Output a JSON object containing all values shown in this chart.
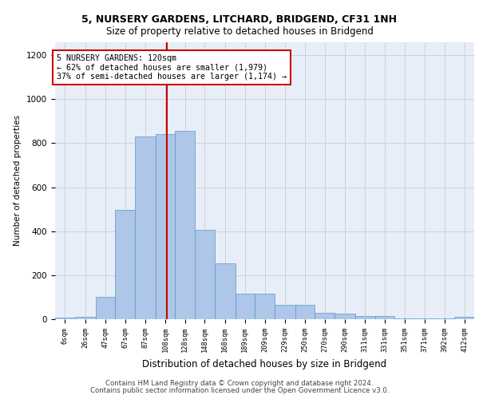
{
  "title1": "5, NURSERY GARDENS, LITCHARD, BRIDGEND, CF31 1NH",
  "title2": "Size of property relative to detached houses in Bridgend",
  "xlabel": "Distribution of detached houses by size in Bridgend",
  "ylabel": "Number of detached properties",
  "footer1": "Contains HM Land Registry data © Crown copyright and database right 2024.",
  "footer2": "Contains public sector information licensed under the Open Government Licence v3.0.",
  "annotation_line1": "5 NURSERY GARDENS: 120sqm",
  "annotation_line2": "← 62% of detached houses are smaller (1,979)",
  "annotation_line3": "37% of semi-detached houses are larger (1,174) →",
  "property_size": 120,
  "bar_color": "#aec6e8",
  "bar_edge_color": "#5599cc",
  "vline_color": "#cc0000",
  "annotation_box_edge": "#cc0000",
  "annotation_box_face": "#ffffff",
  "grid_color": "#cccccc",
  "background_color": "#e8eef8",
  "categories": [
    "6sqm",
    "26sqm",
    "47sqm",
    "67sqm",
    "87sqm",
    "108sqm",
    "128sqm",
    "148sqm",
    "168sqm",
    "189sqm",
    "209sqm",
    "229sqm",
    "250sqm",
    "270sqm",
    "290sqm",
    "311sqm",
    "331sqm",
    "351sqm",
    "371sqm",
    "392sqm",
    "412sqm"
  ],
  "values": [
    8,
    12,
    100,
    495,
    830,
    840,
    855,
    405,
    255,
    115,
    115,
    65,
    65,
    30,
    25,
    15,
    15,
    5,
    5,
    5,
    10
  ],
  "bin_edges": [
    6,
    26,
    47,
    67,
    87,
    108,
    128,
    148,
    168,
    189,
    209,
    229,
    250,
    270,
    290,
    311,
    331,
    351,
    371,
    392,
    412,
    432
  ],
  "ylim": [
    0,
    1260
  ],
  "xlim": [
    6,
    432
  ]
}
